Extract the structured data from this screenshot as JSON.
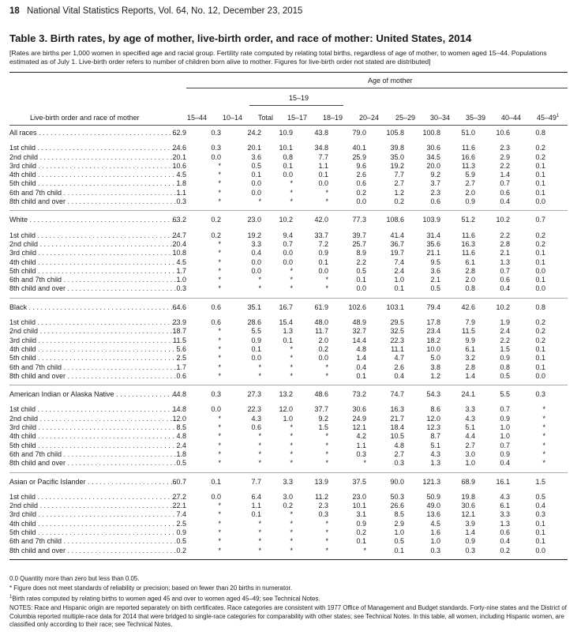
{
  "header": {
    "page": "18",
    "title": "National Vital Statistics Reports, Vol. 64, No. 12, December 23, 2015"
  },
  "table_title": "Table 3. Birth rates, by age of mother, live-birth order, and race of mother: United States, 2014",
  "note": "[Rates are births per 1,000 women in specified age and racial group. Fertility rate computed by relating total births, regardless of age of mother, to women aged 15–44. Populations estimated as of July 1. Live-birth order refers to number of children born alive to mother. Figures for live-birth order not stated are distributed]",
  "column_heads": {
    "stub": "Live-birth order and race of mother",
    "group": "Age of mother",
    "subgroup": "15–19",
    "c1544": "15–44",
    "c1014": "10–14",
    "ctotal": "Total",
    "c1517": "15–17",
    "c1819": "18–19",
    "c2024": "20–24",
    "c2529": "25–29",
    "c3034": "30–34",
    "c3539": "35–39",
    "c4044": "40–44",
    "c4549": "45–49",
    "c4549_sup": "1"
  },
  "sections": [
    {
      "name": "All races",
      "rows": [
        {
          "label": "All races",
          "values": [
            "62.9",
            "0.3",
            "24.2",
            "10.9",
            "43.8",
            "79.0",
            "105.8",
            "100.8",
            "51.0",
            "10.6",
            "0.8"
          ]
        },
        {
          "label": "1st child",
          "values": [
            "24.6",
            "0.3",
            "20.1",
            "10.1",
            "34.8",
            "40.1",
            "39.8",
            "30.6",
            "11.6",
            "2.3",
            "0.2"
          ]
        },
        {
          "label": "2nd child",
          "values": [
            "20.1",
            "0.0",
            "3.6",
            "0.8",
            "7.7",
            "25.9",
            "35.0",
            "34.5",
            "16.6",
            "2.9",
            "0.2"
          ]
        },
        {
          "label": "3rd child",
          "values": [
            "10.6",
            "*",
            "0.5",
            "0.1",
            "1.1",
            "9.6",
            "19.2",
            "20.0",
            "11.3",
            "2.2",
            "0.1"
          ]
        },
        {
          "label": "4th child",
          "values": [
            "4.5",
            "*",
            "0.1",
            "0.0",
            "0.1",
            "2.6",
            "7.7",
            "9.2",
            "5.9",
            "1.4",
            "0.1"
          ]
        },
        {
          "label": "5th child",
          "values": [
            "1.8",
            "*",
            "0.0",
            "*",
            "0.0",
            "0.6",
            "2.7",
            "3.7",
            "2.7",
            "0.7",
            "0.1"
          ]
        },
        {
          "label": "6th and 7th child",
          "values": [
            "1.1",
            "*",
            "0.0",
            "*",
            "*",
            "0.2",
            "1.2",
            "2.3",
            "2.0",
            "0.6",
            "0.1"
          ]
        },
        {
          "label": "8th child and over",
          "values": [
            "0.3",
            "*",
            "*",
            "*",
            "*",
            "0.0",
            "0.2",
            "0.6",
            "0.9",
            "0.4",
            "0.0"
          ]
        }
      ]
    },
    {
      "name": "White",
      "rows": [
        {
          "label": "White",
          "values": [
            "63.2",
            "0.2",
            "23.0",
            "10.2",
            "42.0",
            "77.3",
            "108.6",
            "103.9",
            "51.2",
            "10.2",
            "0.7"
          ]
        },
        {
          "label": "1st child",
          "values": [
            "24.7",
            "0.2",
            "19.2",
            "9.4",
            "33.7",
            "39.7",
            "41.4",
            "31.4",
            "11.6",
            "2.2",
            "0.2"
          ]
        },
        {
          "label": "2nd child",
          "values": [
            "20.4",
            "*",
            "3.3",
            "0.7",
            "7.2",
            "25.7",
            "36.7",
            "35.6",
            "16.3",
            "2.8",
            "0.2"
          ]
        },
        {
          "label": "3rd child",
          "values": [
            "10.8",
            "*",
            "0.4",
            "0.0",
            "0.9",
            "8.9",
            "19.7",
            "21.1",
            "11.6",
            "2.1",
            "0.1"
          ]
        },
        {
          "label": "4th child",
          "values": [
            "4.5",
            "*",
            "0.0",
            "0.0",
            "0.1",
            "2.2",
            "7.4",
            "9.5",
            "6.1",
            "1.3",
            "0.1"
          ]
        },
        {
          "label": "5th child",
          "values": [
            "1.7",
            "*",
            "0.0",
            "*",
            "0.0",
            "0.5",
            "2.4",
            "3.6",
            "2.8",
            "0.7",
            "0.0"
          ]
        },
        {
          "label": "6th and 7th child",
          "values": [
            "1.0",
            "*",
            "*",
            "*",
            "*",
            "0.1",
            "1.0",
            "2.1",
            "2.0",
            "0.6",
            "0.1"
          ]
        },
        {
          "label": "8th child and over",
          "values": [
            "0.3",
            "*",
            "*",
            "*",
            "*",
            "0.0",
            "0.1",
            "0.5",
            "0.8",
            "0.4",
            "0.0"
          ]
        }
      ]
    },
    {
      "name": "Black",
      "rows": [
        {
          "label": "Black",
          "values": [
            "64.6",
            "0.6",
            "35.1",
            "16.7",
            "61.9",
            "102.6",
            "103.1",
            "79.4",
            "42.6",
            "10.2",
            "0.8"
          ]
        },
        {
          "label": "1st child",
          "values": [
            "23.9",
            "0.6",
            "28.6",
            "15.4",
            "48.0",
            "48.9",
            "29.5",
            "17.8",
            "7.9",
            "1.9",
            "0.2"
          ]
        },
        {
          "label": "2nd child",
          "values": [
            "18.7",
            "*",
            "5.5",
            "1.3",
            "11.7",
            "32.7",
            "32.5",
            "23.4",
            "11.5",
            "2.4",
            "0.2"
          ]
        },
        {
          "label": "3rd child",
          "values": [
            "11.5",
            "*",
            "0.9",
            "0.1",
            "2.0",
            "14.4",
            "22.3",
            "18.2",
            "9.9",
            "2.2",
            "0.2"
          ]
        },
        {
          "label": "4th child",
          "values": [
            "5.6",
            "*",
            "0.1",
            "*",
            "0.2",
            "4.8",
            "11.1",
            "10.0",
            "6.1",
            "1.5",
            "0.1"
          ]
        },
        {
          "label": "5th child",
          "values": [
            "2.5",
            "*",
            "0.0",
            "*",
            "0.0",
            "1.4",
            "4.7",
            "5.0",
            "3.2",
            "0.9",
            "0.1"
          ]
        },
        {
          "label": "6th and 7th child",
          "values": [
            "1.7",
            "*",
            "*",
            "*",
            "*",
            "0.4",
            "2.6",
            "3.8",
            "2.8",
            "0.8",
            "0.1"
          ]
        },
        {
          "label": "8th child and over",
          "values": [
            "0.6",
            "*",
            "*",
            "*",
            "*",
            "0.1",
            "0.4",
            "1.2",
            "1.4",
            "0.5",
            "0.0"
          ]
        }
      ]
    },
    {
      "name": "American Indian or Alaska Native",
      "rows": [
        {
          "label": "American Indian or Alaska Native",
          "values": [
            "44.8",
            "0.3",
            "27.3",
            "13.2",
            "48.6",
            "73.2",
            "74.7",
            "54.3",
            "24.1",
            "5.5",
            "0.3"
          ]
        },
        {
          "label": "1st child",
          "values": [
            "14.8",
            "0.0",
            "22.3",
            "12.0",
            "37.7",
            "30.6",
            "16.3",
            "8.6",
            "3.3",
            "0.7",
            "*"
          ]
        },
        {
          "label": "2nd child",
          "values": [
            "12.0",
            "*",
            "4.3",
            "1.0",
            "9.2",
            "24.9",
            "21.7",
            "12.0",
            "4.3",
            "0.9",
            "*"
          ]
        },
        {
          "label": "3rd child",
          "values": [
            "8.5",
            "*",
            "0.6",
            "*",
            "1.5",
            "12.1",
            "18.4",
            "12.3",
            "5.1",
            "1.0",
            "*"
          ]
        },
        {
          "label": "4th child",
          "values": [
            "4.8",
            "*",
            "*",
            "*",
            "*",
            "4.2",
            "10.5",
            "8.7",
            "4.4",
            "1.0",
            "*"
          ]
        },
        {
          "label": "5th child",
          "values": [
            "2.4",
            "*",
            "*",
            "*",
            "*",
            "1.1",
            "4.8",
            "5.1",
            "2.7",
            "0.7",
            "*"
          ]
        },
        {
          "label": "6th and 7th child",
          "values": [
            "1.8",
            "*",
            "*",
            "*",
            "*",
            "0.3",
            "2.7",
            "4.3",
            "3.0",
            "0.9",
            "*"
          ]
        },
        {
          "label": "8th child and over",
          "values": [
            "0.5",
            "*",
            "*",
            "*",
            "*",
            "*",
            "0.3",
            "1.3",
            "1.0",
            "0.4",
            "*"
          ]
        }
      ]
    },
    {
      "name": "Asian or Pacific Islander",
      "rows": [
        {
          "label": "Asian or Pacific Islander",
          "values": [
            "60.7",
            "0.1",
            "7.7",
            "3.3",
            "13.9",
            "37.5",
            "90.0",
            "121.3",
            "68.9",
            "16.1",
            "1.5"
          ]
        },
        {
          "label": "1st child",
          "values": [
            "27.2",
            "0.0",
            "6.4",
            "3.0",
            "11.2",
            "23.0",
            "50.3",
            "50.9",
            "19.8",
            "4.3",
            "0.5"
          ]
        },
        {
          "label": "2nd child",
          "values": [
            "22.1",
            "*",
            "1.1",
            "0.2",
            "2.3",
            "10.1",
            "26.6",
            "49.0",
            "30.6",
            "6.1",
            "0.4"
          ]
        },
        {
          "label": "3rd child",
          "values": [
            "7.4",
            "*",
            "0.1",
            "*",
            "0.3",
            "3.1",
            "8.5",
            "13.6",
            "12.1",
            "3.3",
            "0.3"
          ]
        },
        {
          "label": "4th child",
          "values": [
            "2.5",
            "*",
            "*",
            "*",
            "*",
            "0.9",
            "2.9",
            "4.5",
            "3.9",
            "1.3",
            "0.1"
          ]
        },
        {
          "label": "5th child",
          "values": [
            "0.9",
            "*",
            "*",
            "*",
            "*",
            "0.2",
            "1.0",
            "1.6",
            "1.4",
            "0.6",
            "0.1"
          ]
        },
        {
          "label": "6th and 7th child",
          "values": [
            "0.5",
            "*",
            "*",
            "*",
            "*",
            "0.1",
            "0.5",
            "1.0",
            "0.9",
            "0.4",
            "0.1"
          ]
        },
        {
          "label": "8th child and over",
          "values": [
            "0.2",
            "*",
            "*",
            "*",
            "*",
            "*",
            "0.1",
            "0.3",
            "0.3",
            "0.2",
            "0.0"
          ]
        }
      ]
    }
  ],
  "footnotes": {
    "f1": "0.0 Quantity more than zero but less than 0.05.",
    "f2": "* Figure does not meet standards of reliability or precision; based on fewer than 20 births in numerator.",
    "f3_mark": "1",
    "f3": "Birth rates computed by relating births to women aged 45 and over to women aged 45–49; see Technical Notes.",
    "f4": "NOTES: Race and Hispanic origin are reported separately on birth certificates. Race categories are consistent with 1977 Office of Management and Budget standards. Forty-nine states and the District of Columbia reported multiple-race data for 2014 that were bridged to single-race categories for comparability with other states; see Technical Notes. In this table, all women, including Hispanic women, are classified only according to their race; see Technical Notes."
  }
}
